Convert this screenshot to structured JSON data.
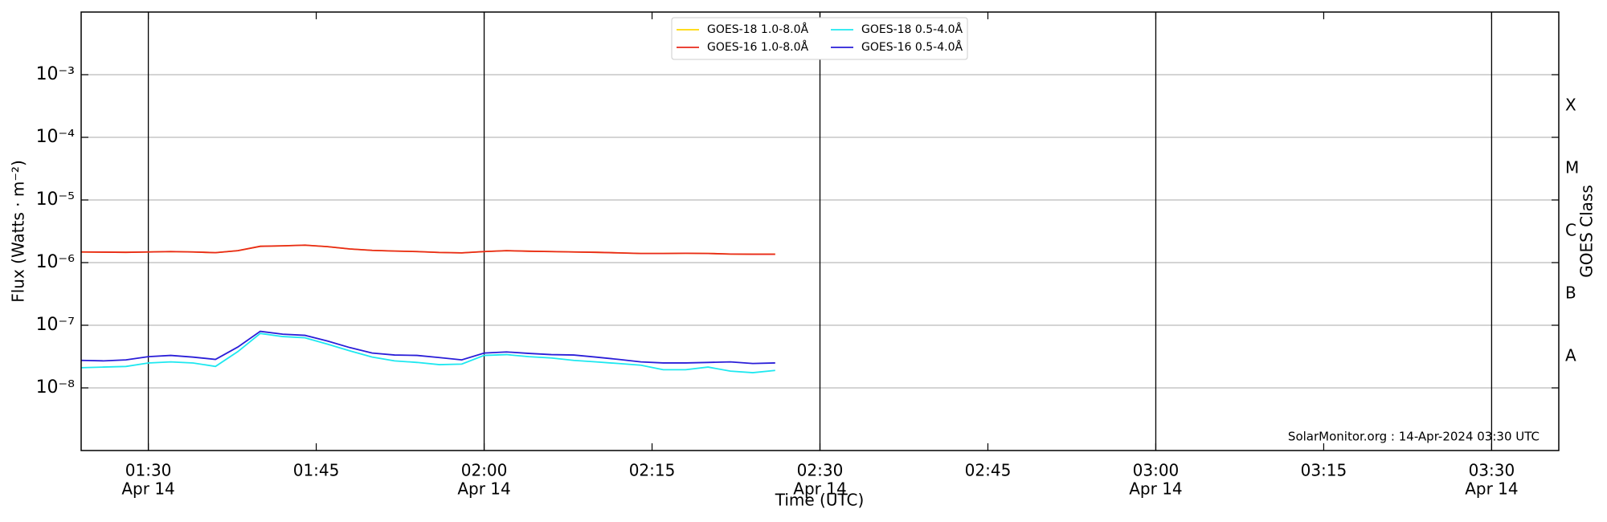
{
  "chart_data": {
    "type": "line",
    "y_scale": "log",
    "grid": true,
    "xlabel": "Time (UTC)",
    "ylabel": "Flux (Watts · m⁻²)",
    "y2label": "GOES Class",
    "annotation": "SolarMonitor.org : 14-Apr-2024 03:30 UTC",
    "legend_position": "top",
    "x": [
      "01:24",
      "01:26",
      "01:28",
      "01:30",
      "01:32",
      "01:34",
      "01:36",
      "01:38",
      "01:40",
      "01:42",
      "01:44",
      "01:46",
      "01:48",
      "01:50",
      "01:52",
      "01:54",
      "01:56",
      "01:58",
      "02:00",
      "02:02",
      "02:04",
      "02:06",
      "02:08",
      "02:10",
      "02:12",
      "02:14",
      "02:16",
      "02:18",
      "02:20",
      "02:22",
      "02:24",
      "02:26"
    ],
    "xlim": [
      "01:24",
      "03:36"
    ],
    "xticks": [
      {
        "value": "01:30",
        "label": "01:30",
        "date": "Apr 14"
      },
      {
        "value": "01:45",
        "label": "01:45"
      },
      {
        "value": "02:00",
        "label": "02:00",
        "date": "Apr 14"
      },
      {
        "value": "02:15",
        "label": "02:15"
      },
      {
        "value": "02:30",
        "label": "02:30",
        "date": "Apr 14"
      },
      {
        "value": "02:45",
        "label": "02:45"
      },
      {
        "value": "03:00",
        "label": "03:00",
        "date": "Apr 14"
      },
      {
        "value": "03:15",
        "label": "03:15"
      },
      {
        "value": "03:30",
        "label": "03:30",
        "date": "Apr 14"
      }
    ],
    "vertical_lines": [
      "01:30",
      "02:00",
      "02:30",
      "03:00",
      "03:30"
    ],
    "ylim": [
      1e-09,
      0.01
    ],
    "yticks": [
      {
        "value": 1e-08,
        "label": "10⁻⁸"
      },
      {
        "value": 1e-07,
        "label": "10⁻⁷"
      },
      {
        "value": 1e-06,
        "label": "10⁻⁶"
      },
      {
        "value": 1e-05,
        "label": "10⁻⁵"
      },
      {
        "value": 0.0001,
        "label": "10⁻⁴"
      },
      {
        "value": 0.001,
        "label": "10⁻³"
      }
    ],
    "y2lim": [
      1e-09,
      0.01
    ],
    "y2ticks": [
      {
        "value": 3.16e-08,
        "label": "A"
      },
      {
        "value": 3.16e-07,
        "label": "B"
      },
      {
        "value": 3.16e-06,
        "label": "C"
      },
      {
        "value": 3.16e-05,
        "label": "M"
      },
      {
        "value": 0.000316,
        "label": "X"
      }
    ],
    "series": [
      {
        "name": "GOES-18 1.0-8.0Å",
        "color": "#ffd700",
        "values": [
          1.48e-06,
          1.47e-06,
          1.46e-06,
          1.48e-06,
          1.5e-06,
          1.48e-06,
          1.44e-06,
          1.55e-06,
          1.82e-06,
          1.85e-06,
          1.9e-06,
          1.8e-06,
          1.65e-06,
          1.57e-06,
          1.53e-06,
          1.5e-06,
          1.45e-06,
          1.43e-06,
          1.5e-06,
          1.55e-06,
          1.52e-06,
          1.5e-06,
          1.48e-06,
          1.46e-06,
          1.43e-06,
          1.4e-06,
          1.4e-06,
          1.41e-06,
          1.4e-06,
          1.37e-06,
          1.36e-06,
          1.36e-06
        ]
      },
      {
        "name": "GOES-16 1.0-8.0Å",
        "color": "#e8291c",
        "values": [
          1.48e-06,
          1.47e-06,
          1.46e-06,
          1.48e-06,
          1.5e-06,
          1.48e-06,
          1.44e-06,
          1.55e-06,
          1.82e-06,
          1.85e-06,
          1.9e-06,
          1.8e-06,
          1.65e-06,
          1.57e-06,
          1.53e-06,
          1.5e-06,
          1.45e-06,
          1.43e-06,
          1.5e-06,
          1.55e-06,
          1.52e-06,
          1.5e-06,
          1.48e-06,
          1.46e-06,
          1.43e-06,
          1.4e-06,
          1.4e-06,
          1.41e-06,
          1.4e-06,
          1.37e-06,
          1.36e-06,
          1.36e-06
        ]
      },
      {
        "name": "GOES-18 0.5-4.0Å",
        "color": "#1ee8f0",
        "values": [
          2.1e-08,
          2.15e-08,
          2.2e-08,
          2.5e-08,
          2.6e-08,
          2.5e-08,
          2.2e-08,
          3.8e-08,
          7.4e-08,
          6.6e-08,
          6.3e-08,
          5e-08,
          3.9e-08,
          3.1e-08,
          2.7e-08,
          2.55e-08,
          2.35e-08,
          2.4e-08,
          3.3e-08,
          3.4e-08,
          3.15e-08,
          3e-08,
          2.75e-08,
          2.6e-08,
          2.45e-08,
          2.3e-08,
          1.95e-08,
          1.95e-08,
          2.15e-08,
          1.85e-08,
          1.75e-08,
          1.9e-08
        ]
      },
      {
        "name": "GOES-16 0.5-4.0Å",
        "color": "#2a1ed8",
        "values": [
          2.75e-08,
          2.7e-08,
          2.8e-08,
          3.15e-08,
          3.3e-08,
          3.1e-08,
          2.85e-08,
          4.5e-08,
          8e-08,
          7.2e-08,
          6.9e-08,
          5.6e-08,
          4.4e-08,
          3.6e-08,
          3.35e-08,
          3.3e-08,
          3.05e-08,
          2.8e-08,
          3.6e-08,
          3.75e-08,
          3.55e-08,
          3.4e-08,
          3.35e-08,
          3.1e-08,
          2.85e-08,
          2.6e-08,
          2.5e-08,
          2.5e-08,
          2.55e-08,
          2.6e-08,
          2.45e-08,
          2.5e-08
        ]
      }
    ]
  }
}
